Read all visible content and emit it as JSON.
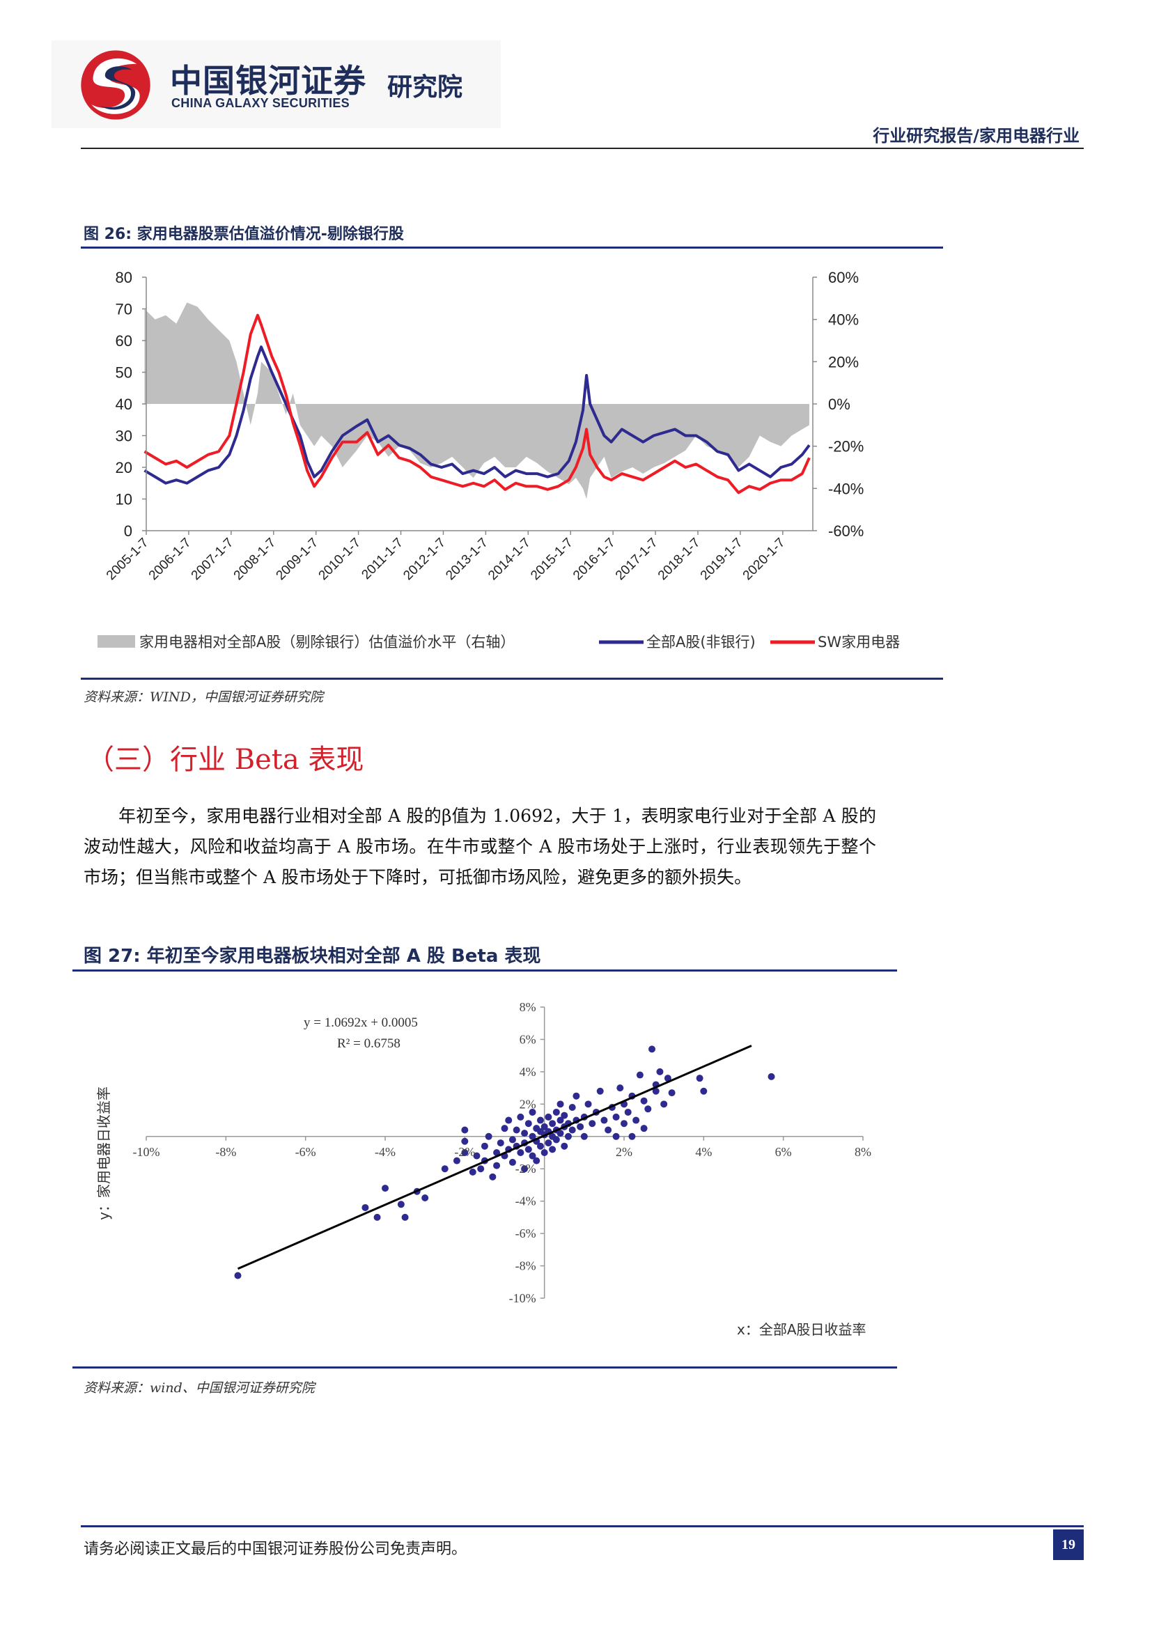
{
  "header": {
    "logo_cn": "中国银河证券",
    "logo_en": "CHINA GALAXY SECURITIES",
    "logo_institute": "研究院",
    "report_label": "行业研究报告/家用电器行业"
  },
  "figure26": {
    "title": "图 26:  家用电器股票估值溢价情况-剔除银行股",
    "source": "资料来源：WIND，中国银河证券研究院"
  },
  "section": {
    "heading": "（三）行业 Beta 表现",
    "paragraph": "年初至今，家用电器行业相对全部 A 股的β值为 1.0692，大于 1，表明家电行业对于全部 A 股的波动性越大，风险和收益均高于 A 股市场。在牛市或整个 A 股市场处于上涨时，行业表现领先于整个市场；但当熊市或整个 A 股市场处于下降时，可抵御市场风险，避免更多的额外损失。"
  },
  "figure27": {
    "title": "图 27:  年初至今家用电器板块相对全部 A 股 Beta 表现",
    "source": "资料来源：wind、中国银河证券研究院"
  },
  "footer": {
    "disclaimer": "请务必阅读正文最后的中国银河证券股份公司免责声明。",
    "page": "19"
  },
  "colors": {
    "navy": "#1e2d7a",
    "red_heading": "#d3202a",
    "premium_area": "#bfbfbf",
    "all_a_line": "#2e2a8f",
    "sw_line": "#ee1c25",
    "scatter_point": "#2e2a8f"
  },
  "chart_data": [
    {
      "type": "line",
      "yaxis_left": {
        "ticks": [
          "80",
          "70",
          "60",
          "50",
          "40",
          "30",
          "20",
          "10",
          "0"
        ],
        "ylim": [
          0,
          80
        ]
      },
      "yaxis_right": {
        "ticks": [
          "60%",
          "40%",
          "20%",
          "0%",
          "-20%",
          "-40%",
          "-60%"
        ],
        "ylim": [
          -0.6,
          0.6
        ]
      },
      "x_tick_labels": [
        "2005-1-7",
        "2006-1-7",
        "2007-1-7",
        "2008-1-7",
        "2009-1-7",
        "2010-1-7",
        "2011-1-7",
        "2012-1-7",
        "2013-1-7",
        "2014-1-7",
        "2015-1-7",
        "2016-1-7",
        "2017-1-7",
        "2018-1-7",
        "2019-1-7",
        "2020-1-7"
      ],
      "x_dates": [
        "2005-01",
        "2005-04",
        "2005-07",
        "2005-10",
        "2006-01",
        "2006-04",
        "2006-07",
        "2006-10",
        "2007-01",
        "2007-03",
        "2007-05",
        "2007-07",
        "2007-09",
        "2007-10",
        "2008-01",
        "2008-03",
        "2008-05",
        "2008-07",
        "2008-09",
        "2008-11",
        "2009-01",
        "2009-03",
        "2009-06",
        "2009-09",
        "2010-01",
        "2010-04",
        "2010-07",
        "2010-10",
        "2011-01",
        "2011-04",
        "2011-07",
        "2011-10",
        "2012-01",
        "2012-04",
        "2012-07",
        "2012-10",
        "2013-01",
        "2013-04",
        "2013-07",
        "2013-10",
        "2014-01",
        "2014-04",
        "2014-07",
        "2014-10",
        "2015-01",
        "2015-03",
        "2015-05",
        "2015-06",
        "2015-07",
        "2015-09",
        "2015-11",
        "2016-01",
        "2016-04",
        "2016-07",
        "2016-10",
        "2017-01",
        "2017-04",
        "2017-07",
        "2017-10",
        "2018-01",
        "2018-04",
        "2018-07",
        "2018-10",
        "2019-01",
        "2019-04",
        "2019-07",
        "2019-10",
        "2020-01",
        "2020-04",
        "2020-07",
        "2020-09"
      ],
      "series": [
        {
          "name": "家用电器相对全部A股（剔除银行）估值溢价水平（右轴）",
          "kind": "area",
          "axis": "right",
          "values": [
            0.45,
            0.4,
            0.42,
            0.38,
            0.48,
            0.46,
            0.4,
            0.35,
            0.3,
            0.2,
            0.05,
            -0.1,
            0.05,
            0.2,
            0.15,
            0.05,
            -0.05,
            0.05,
            -0.1,
            -0.15,
            -0.2,
            -0.15,
            -0.2,
            -0.3,
            -0.22,
            -0.15,
            -0.18,
            -0.25,
            -0.2,
            -0.22,
            -0.28,
            -0.3,
            -0.28,
            -0.25,
            -0.3,
            -0.35,
            -0.28,
            -0.25,
            -0.3,
            -0.3,
            -0.25,
            -0.28,
            -0.32,
            -0.35,
            -0.38,
            -0.35,
            -0.4,
            -0.45,
            -0.35,
            -0.3,
            -0.25,
            -0.35,
            -0.32,
            -0.3,
            -0.33,
            -0.3,
            -0.28,
            -0.25,
            -0.22,
            -0.15,
            -0.2,
            -0.22,
            -0.25,
            -0.3,
            -0.25,
            -0.15,
            -0.18,
            -0.2,
            -0.15,
            -0.12,
            -0.1
          ]
        },
        {
          "name": "全部A股(非银行)",
          "kind": "line",
          "axis": "left",
          "values": [
            19,
            17,
            15,
            16,
            15,
            17,
            19,
            20,
            24,
            30,
            38,
            48,
            55,
            58,
            50,
            45,
            40,
            35,
            30,
            22,
            17,
            19,
            25,
            30,
            33,
            35,
            28,
            30,
            27,
            26,
            24,
            21,
            20,
            21,
            18,
            19,
            18,
            20,
            17,
            19,
            18,
            18,
            17,
            18,
            22,
            28,
            38,
            49,
            40,
            35,
            30,
            28,
            32,
            30,
            28,
            30,
            31,
            32,
            30,
            30,
            28,
            25,
            24,
            19,
            21,
            19,
            17,
            20,
            21,
            24,
            27
          ]
        },
        {
          "name": "SW家用电器",
          "kind": "line",
          "axis": "left",
          "values": [
            25,
            23,
            21,
            22,
            20,
            22,
            24,
            25,
            30,
            40,
            50,
            62,
            68,
            65,
            55,
            50,
            43,
            34,
            27,
            19,
            14,
            17,
            23,
            28,
            28,
            31,
            24,
            27,
            23,
            22,
            20,
            17,
            16,
            15,
            14,
            15,
            14,
            16,
            13,
            15,
            14,
            14,
            13,
            14,
            16,
            20,
            26,
            32,
            24,
            20,
            17,
            16,
            18,
            17,
            16,
            18,
            20,
            22,
            20,
            21,
            19,
            17,
            16,
            12,
            14,
            13,
            15,
            16,
            16,
            18,
            23
          ]
        }
      ]
    },
    {
      "type": "scatter",
      "equation": "y = 1.0692x + 0.0005",
      "r2": "R² = 0.6758",
      "xlabel": "x：全部A股日收益率",
      "ylabel": "y：家用电器日收益率",
      "x_ticks": [
        "-10%",
        "-8%",
        "-6%",
        "-4%",
        "-2%",
        "2%",
        "4%",
        "6%",
        "8%"
      ],
      "y_ticks": [
        "8%",
        "6%",
        "4%",
        "2%",
        "-2%",
        "-4%",
        "-6%",
        "-8%",
        "-10%"
      ],
      "xlim": [
        -0.1,
        0.08
      ],
      "ylim": [
        -0.1,
        0.08
      ],
      "trendline": {
        "x": [
          -0.077,
          0.052
        ],
        "y": [
          -0.0818,
          0.0561
        ]
      },
      "points": [
        [
          -0.077,
          -0.086
        ],
        [
          -0.045,
          -0.044
        ],
        [
          -0.042,
          -0.05
        ],
        [
          -0.04,
          -0.032
        ],
        [
          -0.036,
          -0.042
        ],
        [
          -0.035,
          -0.05
        ],
        [
          -0.032,
          -0.034
        ],
        [
          -0.03,
          -0.038
        ],
        [
          -0.025,
          -0.02
        ],
        [
          -0.022,
          -0.015
        ],
        [
          -0.02,
          -0.01
        ],
        [
          -0.02,
          -0.003
        ],
        [
          -0.018,
          -0.022
        ],
        [
          -0.017,
          -0.012
        ],
        [
          -0.016,
          -0.02
        ],
        [
          -0.015,
          -0.006
        ],
        [
          -0.015,
          -0.015
        ],
        [
          -0.014,
          0.0
        ],
        [
          -0.013,
          -0.025
        ],
        [
          -0.012,
          -0.01
        ],
        [
          -0.012,
          -0.018
        ],
        [
          -0.011,
          -0.004
        ],
        [
          -0.01,
          0.005
        ],
        [
          -0.01,
          -0.012
        ],
        [
          -0.009,
          -0.008
        ],
        [
          -0.009,
          0.01
        ],
        [
          -0.008,
          -0.002
        ],
        [
          -0.008,
          -0.016
        ],
        [
          -0.007,
          0.004
        ],
        [
          -0.007,
          -0.006
        ],
        [
          -0.006,
          0.012
        ],
        [
          -0.006,
          -0.01
        ],
        [
          -0.005,
          0.002
        ],
        [
          -0.005,
          -0.004
        ],
        [
          -0.005,
          -0.02
        ],
        [
          -0.004,
          0.008
        ],
        [
          -0.004,
          -0.008
        ],
        [
          -0.003,
          0.0
        ],
        [
          -0.003,
          0.015
        ],
        [
          -0.003,
          -0.012
        ],
        [
          -0.002,
          0.005
        ],
        [
          -0.002,
          -0.003
        ],
        [
          -0.002,
          -0.015
        ],
        [
          -0.001,
          0.003
        ],
        [
          -0.001,
          0.01
        ],
        [
          -0.001,
          -0.006
        ],
        [
          0.0,
          0.001
        ],
        [
          0.0,
          -0.01
        ],
        [
          0.0,
          0.006
        ],
        [
          0.001,
          0.003
        ],
        [
          0.001,
          -0.004
        ],
        [
          0.001,
          0.012
        ],
        [
          0.002,
          0.0
        ],
        [
          0.002,
          0.008
        ],
        [
          0.002,
          -0.008
        ],
        [
          0.003,
          0.004
        ],
        [
          0.003,
          0.015
        ],
        [
          0.003,
          -0.002
        ],
        [
          0.004,
          0.01
        ],
        [
          0.004,
          0.002
        ],
        [
          0.004,
          0.02
        ],
        [
          0.005,
          0.006
        ],
        [
          0.005,
          -0.006
        ],
        [
          0.005,
          0.013
        ],
        [
          0.006,
          0.008
        ],
        [
          0.006,
          0.0
        ],
        [
          0.007,
          0.018
        ],
        [
          0.007,
          0.004
        ],
        [
          0.008,
          0.01
        ],
        [
          0.008,
          0.025
        ],
        [
          0.009,
          0.006
        ],
        [
          0.01,
          0.012
        ],
        [
          0.01,
          0.0
        ],
        [
          0.011,
          0.02
        ],
        [
          0.012,
          0.008
        ],
        [
          0.013,
          0.015
        ],
        [
          0.014,
          0.028
        ],
        [
          0.015,
          0.01
        ],
        [
          0.016,
          0.004
        ],
        [
          0.017,
          0.018
        ],
        [
          0.018,
          0.012
        ],
        [
          0.019,
          0.03
        ],
        [
          0.02,
          0.02
        ],
        [
          0.02,
          0.008
        ],
        [
          0.021,
          0.015
        ],
        [
          0.022,
          0.025
        ],
        [
          0.023,
          0.01
        ],
        [
          0.024,
          0.038
        ],
        [
          0.025,
          0.022
        ],
        [
          0.026,
          0.017
        ],
        [
          0.027,
          0.054
        ],
        [
          0.028,
          0.028
        ],
        [
          0.029,
          0.04
        ],
        [
          0.03,
          0.02
        ],
        [
          0.032,
          0.027
        ],
        [
          0.022,
          0.0
        ],
        [
          0.018,
          0.0
        ],
        [
          0.028,
          0.032
        ],
        [
          0.031,
          0.036
        ],
        [
          0.039,
          0.036
        ],
        [
          0.04,
          0.028
        ],
        [
          0.057,
          0.037
        ],
        [
          0.025,
          0.005
        ],
        [
          -0.02,
          0.004
        ]
      ]
    }
  ]
}
